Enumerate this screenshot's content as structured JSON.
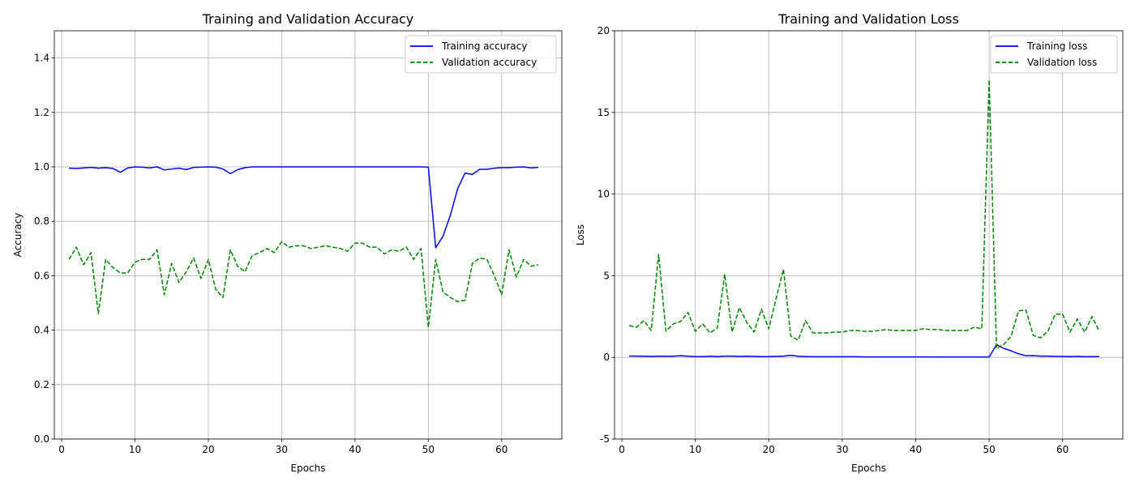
{
  "chart_data": [
    {
      "type": "line",
      "title": "Training and Validation Accuracy",
      "xlabel": "Epochs",
      "ylabel": "Accuracy",
      "xlim": [
        -1,
        68.2
      ],
      "ylim": [
        0,
        1.5
      ],
      "xticks": [
        0,
        10,
        20,
        30,
        40,
        50,
        60
      ],
      "yticks": [
        0.0,
        0.2,
        0.4,
        0.6,
        0.8,
        1.0,
        1.2,
        1.4
      ],
      "ytick_decimals": 1,
      "grid": true,
      "legend_position": "top-right",
      "x": [
        1,
        2,
        3,
        4,
        5,
        6,
        7,
        8,
        9,
        10,
        11,
        12,
        13,
        14,
        15,
        16,
        17,
        18,
        19,
        20,
        21,
        22,
        23,
        24,
        25,
        26,
        27,
        28,
        29,
        30,
        31,
        32,
        33,
        34,
        35,
        36,
        37,
        38,
        39,
        40,
        41,
        42,
        43,
        44,
        45,
        46,
        47,
        48,
        49,
        50,
        51,
        52,
        53,
        54,
        55,
        56,
        57,
        58,
        59,
        60,
        61,
        62,
        63,
        64,
        65
      ],
      "series": [
        {
          "name": "Training accuracy",
          "color": "#0000ff",
          "style": "solid",
          "values": [
            0.995,
            0.994,
            0.996,
            0.998,
            0.995,
            0.997,
            0.994,
            0.98,
            0.996,
            1.0,
            0.999,
            0.996,
            1.0,
            0.989,
            0.992,
            0.995,
            0.99,
            0.998,
            0.999,
            1.0,
            0.999,
            0.992,
            0.975,
            0.99,
            0.997,
            1.0,
            1.0,
            1.0,
            1.0,
            1.0,
            1.0,
            1.0,
            1.0,
            1.0,
            1.0,
            1.0,
            1.0,
            1.0,
            1.0,
            1.0,
            1.0,
            1.0,
            1.0,
            1.0,
            1.0,
            1.0,
            1.0,
            1.0,
            1.0,
            0.999,
            0.703,
            0.745,
            0.822,
            0.92,
            0.977,
            0.972,
            0.991,
            0.991,
            0.995,
            0.997,
            0.997,
            0.999,
            1.0,
            0.996,
            0.998
          ]
        },
        {
          "name": "Validation accuracy",
          "color": "#008000",
          "style": "dashed",
          "values": [
            0.66,
            0.705,
            0.64,
            0.685,
            0.46,
            0.66,
            0.63,
            0.61,
            0.61,
            0.65,
            0.66,
            0.66,
            0.695,
            0.53,
            0.645,
            0.575,
            0.615,
            0.665,
            0.59,
            0.66,
            0.55,
            0.52,
            0.695,
            0.635,
            0.615,
            0.675,
            0.685,
            0.7,
            0.685,
            0.725,
            0.705,
            0.71,
            0.71,
            0.7,
            0.705,
            0.71,
            0.705,
            0.7,
            0.69,
            0.72,
            0.72,
            0.705,
            0.705,
            0.68,
            0.695,
            0.69,
            0.705,
            0.66,
            0.7,
            0.41,
            0.66,
            0.54,
            0.52,
            0.505,
            0.51,
            0.645,
            0.665,
            0.66,
            0.6,
            0.53,
            0.695,
            0.595,
            0.66,
            0.635,
            0.64
          ]
        }
      ]
    },
    {
      "type": "line",
      "title": "Training and Validation Loss",
      "xlabel": "Epochs",
      "ylabel": "Loss",
      "xlim": [
        -1,
        68.2
      ],
      "ylim": [
        -5,
        20
      ],
      "xticks": [
        0,
        10,
        20,
        30,
        40,
        50,
        60
      ],
      "yticks": [
        -5,
        0,
        5,
        10,
        15,
        20
      ],
      "ytick_decimals": 0,
      "grid": true,
      "legend_position": "top-right",
      "x": [
        1,
        2,
        3,
        4,
        5,
        6,
        7,
        8,
        9,
        10,
        11,
        12,
        13,
        14,
        15,
        16,
        17,
        18,
        19,
        20,
        21,
        22,
        23,
        24,
        25,
        26,
        27,
        28,
        29,
        30,
        31,
        32,
        33,
        34,
        35,
        36,
        37,
        38,
        39,
        40,
        41,
        42,
        43,
        44,
        45,
        46,
        47,
        48,
        49,
        50,
        51,
        52,
        53,
        54,
        55,
        56,
        57,
        58,
        59,
        60,
        61,
        62,
        63,
        64,
        65
      ],
      "series": [
        {
          "name": "Training loss",
          "color": "#0000ff",
          "style": "solid",
          "values": [
            0.08,
            0.08,
            0.07,
            0.06,
            0.07,
            0.07,
            0.07,
            0.1,
            0.07,
            0.05,
            0.05,
            0.07,
            0.05,
            0.08,
            0.08,
            0.06,
            0.07,
            0.06,
            0.05,
            0.05,
            0.06,
            0.08,
            0.13,
            0.07,
            0.05,
            0.04,
            0.04,
            0.04,
            0.04,
            0.04,
            0.04,
            0.04,
            0.03,
            0.03,
            0.03,
            0.03,
            0.03,
            0.03,
            0.03,
            0.03,
            0.03,
            0.03,
            0.02,
            0.02,
            0.02,
            0.02,
            0.02,
            0.02,
            0.02,
            0.02,
            0.78,
            0.55,
            0.4,
            0.22,
            0.1,
            0.11,
            0.08,
            0.08,
            0.06,
            0.06,
            0.05,
            0.06,
            0.04,
            0.05,
            0.05
          ]
        },
        {
          "name": "Validation loss",
          "color": "#008000",
          "style": "dashed",
          "values": [
            1.95,
            1.85,
            2.25,
            1.65,
            6.3,
            1.6,
            2.05,
            2.2,
            2.75,
            1.6,
            2.05,
            1.5,
            1.8,
            5.1,
            1.55,
            3.05,
            2.15,
            1.55,
            2.95,
            1.75,
            3.6,
            5.4,
            1.3,
            1.05,
            2.25,
            1.5,
            1.5,
            1.5,
            1.55,
            1.55,
            1.65,
            1.65,
            1.6,
            1.6,
            1.65,
            1.7,
            1.65,
            1.65,
            1.65,
            1.65,
            1.75,
            1.7,
            1.7,
            1.65,
            1.65,
            1.65,
            1.65,
            1.85,
            1.75,
            17.0,
            0.55,
            0.8,
            1.3,
            2.85,
            2.9,
            1.35,
            1.2,
            1.6,
            2.65,
            2.65,
            1.55,
            2.35,
            1.55,
            2.5,
            1.6
          ]
        }
      ]
    }
  ]
}
